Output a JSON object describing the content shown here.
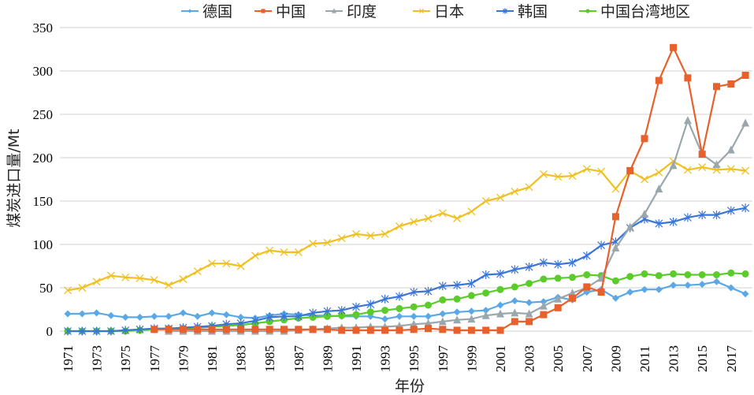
{
  "chart_data": {
    "type": "line",
    "title": "",
    "xlabel": "年份",
    "ylabel": "煤炭进口量/Mt",
    "ylim": [
      0,
      350
    ],
    "yticks": [
      "0",
      "50",
      "100",
      "150",
      "200",
      "250",
      "300",
      "350"
    ],
    "grid": true,
    "legend_position": "top",
    "x": [
      1971,
      1972,
      1973,
      1974,
      1975,
      1976,
      1977,
      1978,
      1979,
      1980,
      1981,
      1982,
      1983,
      1984,
      1985,
      1986,
      1987,
      1988,
      1989,
      1990,
      1991,
      1992,
      1993,
      1994,
      1995,
      1996,
      1997,
      1998,
      1999,
      2000,
      2001,
      2002,
      2003,
      2004,
      2005,
      2006,
      2007,
      2008,
      2009,
      2010,
      2011,
      2012,
      2013,
      2014,
      2015,
      2016,
      2017,
      2018
    ],
    "xtick_labels": [
      "1971",
      "1973",
      "1975",
      "1977",
      "1979",
      "1981",
      "1983",
      "1985",
      "1987",
      "1989",
      "1991",
      "1993",
      "1995",
      "1997",
      "1999",
      "2001",
      "2003",
      "2005",
      "2007",
      "2009",
      "2011",
      "2013",
      "2015",
      "2017"
    ],
    "series": [
      {
        "name": "德国",
        "color": "#5aa9e6",
        "marker": "diamond",
        "values": [
          20,
          20,
          21,
          18,
          16,
          16,
          17,
          17,
          21,
          17,
          21,
          19,
          16,
          15,
          18,
          20,
          19,
          18,
          18,
          17,
          17,
          17,
          14,
          17,
          17,
          17,
          20,
          22,
          23,
          24,
          30,
          35,
          33,
          34,
          39,
          36,
          45,
          48,
          38,
          45,
          48,
          48,
          53,
          53,
          54,
          57,
          50,
          43
        ]
      },
      {
        "name": "中国",
        "color": "#e8602c",
        "marker": "square",
        "values": [
          null,
          null,
          null,
          null,
          null,
          null,
          2,
          2,
          2,
          2,
          2,
          2,
          2,
          2,
          2,
          2,
          2,
          2,
          2,
          1,
          1,
          1,
          1,
          1,
          2,
          3,
          2,
          1,
          1,
          1,
          1,
          11,
          11,
          19,
          27,
          38,
          51,
          45,
          132,
          185,
          222,
          289,
          327,
          292,
          204,
          282,
          285,
          295
        ]
      },
      {
        "name": "印度",
        "color": "#9aa7ad",
        "marker": "triangle",
        "values": [
          null,
          null,
          null,
          null,
          null,
          null,
          null,
          0,
          0,
          0,
          0,
          0,
          0,
          0,
          0,
          0,
          1,
          2,
          3,
          4,
          4,
          5,
          5,
          6,
          8,
          9,
          11,
          13,
          14,
          18,
          20,
          21,
          20,
          29,
          37,
          44,
          50,
          61,
          96,
          120,
          135,
          164,
          191,
          243,
          204,
          192,
          209,
          240
        ]
      },
      {
        "name": "日本",
        "color": "#f0c020",
        "marker": "x",
        "values": [
          47,
          50,
          57,
          64,
          62,
          61,
          59,
          53,
          60,
          69,
          78,
          78,
          75,
          87,
          93,
          91,
          91,
          101,
          102,
          107,
          112,
          110,
          112,
          121,
          126,
          130,
          136,
          130,
          138,
          150,
          154,
          161,
          166,
          181,
          178,
          179,
          187,
          184,
          164,
          185,
          175,
          183,
          196,
          186,
          189,
          186,
          187,
          185
        ]
      },
      {
        "name": "韩国",
        "color": "#3a75d8",
        "marker": "star",
        "values": [
          0,
          0,
          0,
          0,
          1,
          2,
          3,
          3,
          4,
          5,
          6,
          8,
          9,
          12,
          16,
          17,
          17,
          21,
          23,
          24,
          28,
          31,
          37,
          40,
          45,
          46,
          52,
          53,
          55,
          65,
          66,
          71,
          74,
          79,
          77,
          79,
          87,
          99,
          103,
          119,
          129,
          124,
          126,
          131,
          134,
          134,
          139,
          142
        ]
      },
      {
        "name": "中国台湾地区",
        "color": "#5ccc2c",
        "marker": "circle",
        "values": [
          0,
          0,
          0,
          0,
          0,
          1,
          2,
          3,
          3,
          4,
          5,
          6,
          7,
          9,
          11,
          13,
          15,
          16,
          17,
          18,
          19,
          22,
          24,
          26,
          28,
          30,
          36,
          37,
          41,
          44,
          48,
          51,
          55,
          60,
          61,
          62,
          65,
          64,
          58,
          63,
          66,
          64,
          66,
          65,
          65,
          65,
          67,
          66
        ]
      }
    ]
  }
}
